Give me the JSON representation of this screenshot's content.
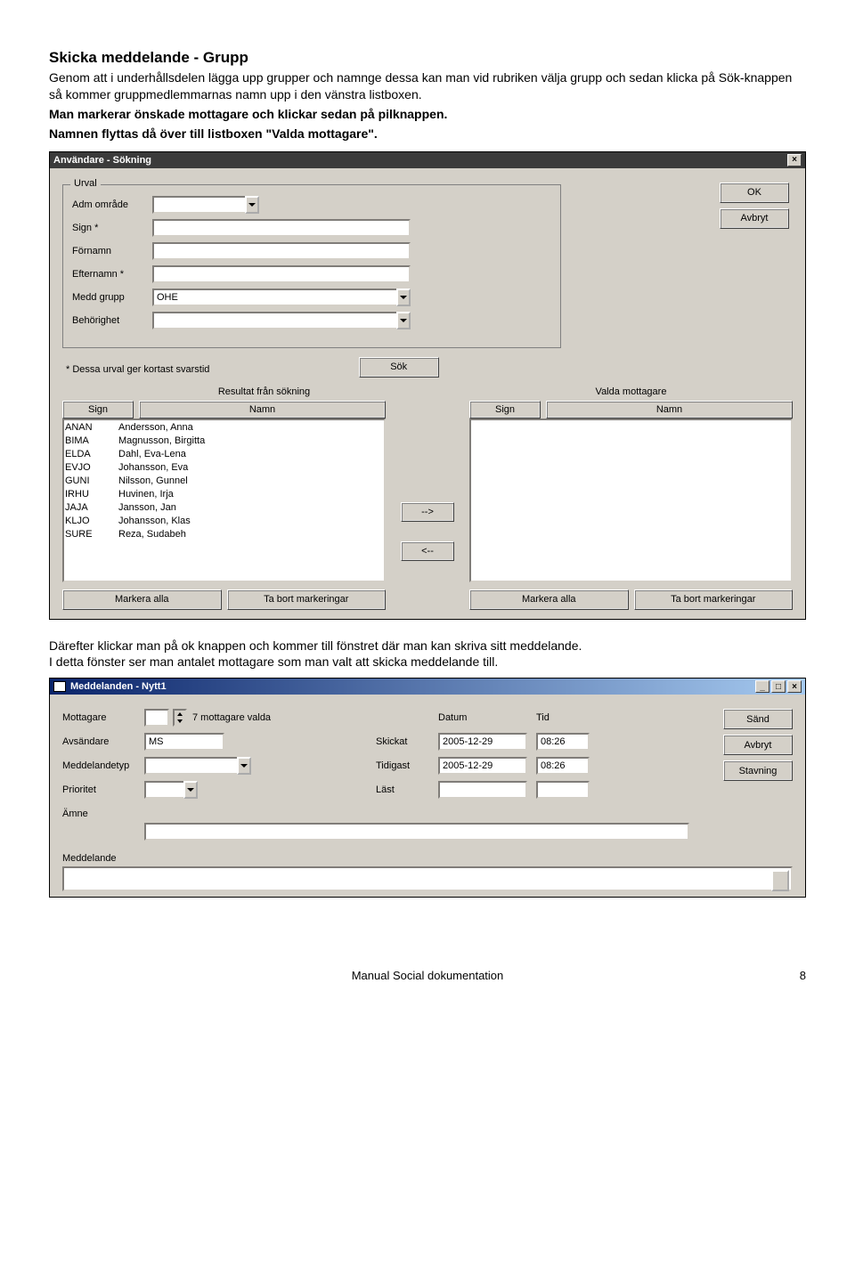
{
  "heading": "Skicka meddelande - Grupp",
  "intro_line1": "Genom att i underhållsdelen lägga upp grupper och namnge dessa kan man vid rubriken välja grupp och sedan klicka på Sök-knappen så kommer gruppmedlemmarnas namn upp i den vänstra listboxen.",
  "intro_bold1": "Man markerar önskade mottagare och klickar sedan på pilknappen.",
  "intro_bold2": "Namnen flyttas då över till listboxen \"Valda mottagare\".",
  "win1": {
    "title": "Användare - Sökning",
    "close": "×",
    "fieldset_legend": "Urval",
    "labels": {
      "adm_omrade": "Adm område",
      "sign": "Sign *",
      "fornamn": "Förnamn",
      "efternamn": "Efternamn *",
      "medd_grupp": "Medd grupp",
      "behorighet": "Behörighet"
    },
    "values": {
      "medd_grupp": "OHE"
    },
    "buttons": {
      "ok": "OK",
      "avbryt": "Avbryt",
      "sok": "Sök",
      "arrow_right": "-->",
      "arrow_left": "<--",
      "markera_alla": "Markera alla",
      "ta_bort": "Ta bort markeringar"
    },
    "note": "* Dessa urval ger kortast svarstid",
    "result_label": "Resultat från sökning",
    "valda_label": "Valda mottagare",
    "col_sign": "Sign",
    "col_namn": "Namn",
    "results": [
      {
        "sign": "ANAN",
        "namn": "Andersson, Anna"
      },
      {
        "sign": "BIMA",
        "namn": "Magnusson, Birgitta"
      },
      {
        "sign": "ELDA",
        "namn": "Dahl, Eva-Lena"
      },
      {
        "sign": "EVJO",
        "namn": "Johansson, Eva"
      },
      {
        "sign": "GUNI",
        "namn": "Nilsson, Gunnel"
      },
      {
        "sign": "IRHU",
        "namn": "Huvinen, Irja"
      },
      {
        "sign": "JAJA",
        "namn": "Jansson, Jan"
      },
      {
        "sign": "KLJO",
        "namn": "Johansson, Klas"
      },
      {
        "sign": "SURE",
        "namn": "Reza, Sudabeh"
      }
    ]
  },
  "mid_text": "Därefter klickar man på ok knappen och kommer till fönstret där man kan skriva sitt meddelande.",
  "mid_text2": "I detta fönster ser man antalet mottagare som man valt att skicka meddelande till.",
  "win2": {
    "title": "Meddelanden - Nytt1",
    "labels": {
      "mottagare": "Mottagare",
      "avsandare": "Avsändare",
      "meddelandetyp": "Meddelandetyp",
      "prioritet": "Prioritet",
      "amne": "Ämne",
      "skickat": "Skickat",
      "tidigast": "Tidigast",
      "last": "Läst",
      "datum": "Datum",
      "tid": "Tid",
      "meddelande": "Meddelande"
    },
    "values": {
      "mottagare_text": "7 mottagare valda",
      "avsandare": "MS",
      "skickat_datum": "2005-12-29",
      "skickat_tid": "08:26",
      "tidigast_datum": "2005-12-29",
      "tidigast_tid": "08:26"
    },
    "buttons": {
      "sand": "Sänd",
      "avbryt": "Avbryt",
      "stavning": "Stavning"
    }
  },
  "footer_center": "Manual Social dokumentation",
  "footer_page": "8"
}
